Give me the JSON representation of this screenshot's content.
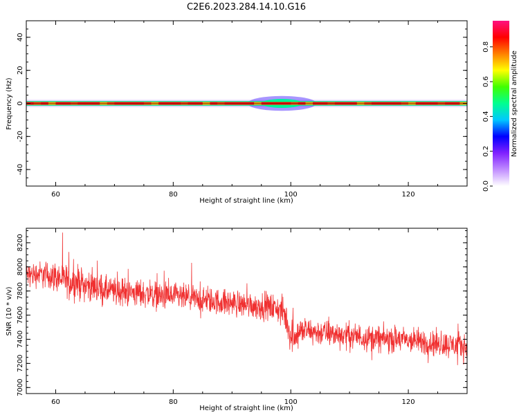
{
  "figure_title": "C2E6.2023.284.14.10.G16",
  "chart_data": [
    {
      "type": "heatmap",
      "title": "",
      "xlabel": "Height of straight line (km)",
      "ylabel": "Frequency (Hz)",
      "xlim": [
        55,
        130
      ],
      "ylim": [
        -50,
        50
      ],
      "x_ticks": [
        60,
        80,
        100,
        120
      ],
      "y_ticks": [
        -40,
        -20,
        0,
        20,
        40
      ],
      "x_tick_labels": [
        "60",
        "80",
        "100",
        "120"
      ],
      "y_tick_labels": [
        "-40",
        "-20",
        "0",
        "20",
        "40"
      ],
      "colorbar": {
        "label": "Normalized spectral amplitude",
        "range": [
          0,
          0.95
        ],
        "ticks": [
          0.0,
          0.2,
          0.4,
          0.6,
          0.8
        ],
        "tick_labels": [
          "0.0",
          "0.2",
          "0.4",
          "0.6",
          "0.8"
        ],
        "colormap": [
          "#ffffff",
          "#c08cff",
          "#8020ff",
          "#0000ff",
          "#00c8ff",
          "#00ff90",
          "#40ff00",
          "#ffff00",
          "#ff8000",
          "#ff0000",
          "#ff1080"
        ]
      },
      "band": {
        "center_frequency_hz": 0,
        "core_halfwidth_hz": 1,
        "halo_halfwidth_hz": 3,
        "core_color": "#ff0000",
        "inner_color": "#00ff80",
        "halo_color": "#6040ff",
        "broadening": {
          "x_start": 95,
          "x_end": 102,
          "halo_halfwidth_hz": 4.5,
          "core_color": "#00f0a0"
        }
      }
    },
    {
      "type": "line",
      "title": "",
      "xlabel": "Height of straight line (km)",
      "ylabel": "SNR (10 * v/v)",
      "xlim": [
        55,
        130
      ],
      "ylim": [
        6950,
        8320
      ],
      "x_ticks": [
        60,
        80,
        100,
        120
      ],
      "y_ticks": [
        7000,
        7200,
        7400,
        7600,
        7800,
        8000,
        8200
      ],
      "x_tick_labels": [
        "60",
        "80",
        "100",
        "120"
      ],
      "y_tick_labels": [
        "7000",
        "7200",
        "7400",
        "7600",
        "7800",
        "8000",
        "8200"
      ],
      "series": [
        {
          "color": "#f03030",
          "x": [
            55,
            57,
            60,
            62,
            64,
            65,
            67,
            69,
            72,
            75,
            78,
            80,
            83,
            85,
            88,
            90,
            92,
            94,
            96,
            98,
            99,
            100,
            101,
            102,
            104,
            106,
            108,
            110,
            112,
            114,
            116,
            118,
            120,
            122,
            124,
            126,
            128,
            130
          ],
          "mean": [
            7930,
            7940,
            7920,
            7880,
            7870,
            7850,
            7830,
            7800,
            7790,
            7780,
            7760,
            7750,
            7740,
            7720,
            7710,
            7700,
            7690,
            7680,
            7670,
            7650,
            7600,
            7430,
            7450,
            7470,
            7460,
            7450,
            7440,
            7430,
            7420,
            7410,
            7400,
            7400,
            7390,
            7380,
            7370,
            7360,
            7350,
            7340
          ],
          "spread": [
            150,
            160,
            180,
            200,
            200,
            190,
            180,
            170,
            170,
            170,
            170,
            170,
            160,
            160,
            160,
            160,
            160,
            160,
            160,
            170,
            200,
            220,
            180,
            160,
            160,
            160,
            160,
            160,
            160,
            160,
            160,
            160,
            160,
            160,
            160,
            160,
            160,
            170
          ]
        }
      ]
    }
  ]
}
